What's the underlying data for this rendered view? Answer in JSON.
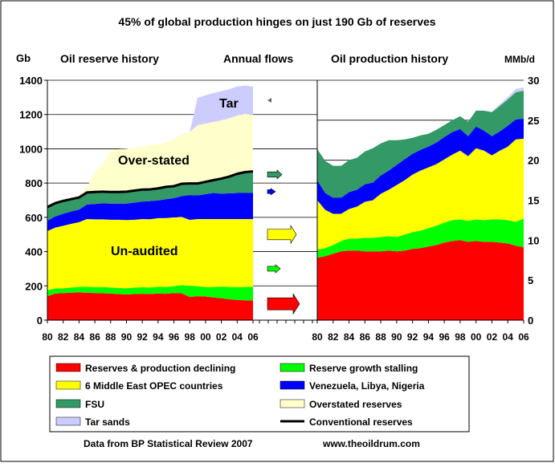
{
  "title": "45%  of global production hinges on just 190 Gb of reserves",
  "left_unit": "Gb",
  "right_unit": "MMb/d",
  "panel_titles": {
    "reserves": "Oil reserve history",
    "flows": "Annual flows",
    "production": "Oil production history"
  },
  "annotations": {
    "tar": "Tar",
    "overstated": "Over-stated",
    "unaudited": "Un-audited"
  },
  "footer": {
    "source": "Data from BP Statistical Review 2007",
    "url": "www.theoildrum.com"
  },
  "colors": {
    "red": "#ff0000",
    "green": "#00ff00",
    "yellow": "#ffff00",
    "blue": "#0000ff",
    "fsu": "#339966",
    "overstated": "#ffffcc",
    "tar": "#ccccff",
    "conventional": "#000000"
  },
  "chart_data": [
    {
      "type": "area",
      "stacked": true,
      "ylim": [
        0,
        1400
      ],
      "yticks": [
        0,
        200,
        400,
        600,
        800,
        1000,
        1200,
        1400
      ],
      "xtick_labels": [
        "80",
        "82",
        "84",
        "86",
        "88",
        "90",
        "92",
        "94",
        "96",
        "98",
        "00",
        "02",
        "04",
        "06"
      ],
      "x": [
        1980,
        1981,
        1982,
        1983,
        1984,
        1985,
        1986,
        1987,
        1988,
        1989,
        1990,
        1991,
        1992,
        1993,
        1994,
        1995,
        1996,
        1997,
        1998,
        1999,
        2000,
        2001,
        2002,
        2003,
        2004,
        2005,
        2006
      ],
      "grid": "horizontal",
      "series": [
        {
          "name": "Reserves & production declining",
          "color_key": "red",
          "values": [
            140,
            155,
            158,
            160,
            162,
            160,
            158,
            157,
            155,
            152,
            150,
            152,
            154,
            153,
            155,
            154,
            158,
            156,
            135,
            140,
            138,
            132,
            128,
            122,
            118,
            116,
            115
          ]
        },
        {
          "name": "Reserve growth stalling",
          "color_key": "green",
          "values": [
            35,
            30,
            28,
            30,
            32,
            35,
            35,
            36,
            36,
            36,
            36,
            38,
            38,
            38,
            40,
            40,
            40,
            48,
            65,
            58,
            55,
            62,
            68,
            72,
            75,
            78,
            80
          ]
        },
        {
          "name": "6 Middle East OPEC countries",
          "color_key": "yellow",
          "values": [
            345,
            355,
            365,
            372,
            378,
            395,
            395,
            395,
            395,
            398,
            398,
            396,
            398,
            398,
            400,
            402,
            402,
            398,
            385,
            392,
            397,
            396,
            394,
            396,
            397,
            396,
            395
          ]
        },
        {
          "name": "Venezuela, Libya, Nigeria",
          "color_key": "blue",
          "values": [
            60,
            65,
            70,
            72,
            73,
            85,
            90,
            94,
            94,
            94,
            96,
            100,
            102,
            106,
            104,
            110,
            112,
            122,
            145,
            138,
            145,
            152,
            148,
            150,
            152,
            152,
            152
          ]
        },
        {
          "name": "FSU",
          "color_key": "fsu",
          "values": [
            80,
            78,
            75,
            72,
            71,
            70,
            70,
            68,
            68,
            68,
            70,
            70,
            70,
            68,
            70,
            72,
            70,
            72,
            68,
            70,
            72,
            75,
            88,
            98,
            112,
            122,
            126
          ]
        },
        {
          "name": "Overstated reserves",
          "color_key": "overstated",
          "values": [
            0,
            0,
            0,
            0,
            15,
            30,
            120,
            160,
            240,
            250,
            250,
            250,
            250,
            260,
            255,
            260,
            275,
            290,
            300,
            340,
            340,
            340,
            340,
            340,
            340,
            340,
            330
          ]
        },
        {
          "name": "Tar sands",
          "color_key": "tar",
          "values": [
            0,
            0,
            0,
            0,
            0,
            0,
            0,
            0,
            0,
            0,
            0,
            0,
            0,
            0,
            0,
            0,
            0,
            0,
            0,
            160,
            165,
            168,
            170,
            170,
            170,
            165,
            165
          ]
        }
      ],
      "conventional_reserves_series": "Conventional reserves"
    },
    {
      "type": "area",
      "stacked": true,
      "ylim": [
        0,
        30
      ],
      "yticks": [
        0,
        5,
        10,
        15,
        20,
        25,
        30
      ],
      "xtick_labels": [
        "80",
        "82",
        "84",
        "86",
        "88",
        "90",
        "92",
        "94",
        "96",
        "98",
        "00",
        "02",
        "04",
        "06"
      ],
      "x": [
        1980,
        1981,
        1982,
        1983,
        1984,
        1985,
        1986,
        1987,
        1988,
        1989,
        1990,
        1991,
        1992,
        1993,
        1994,
        1995,
        1996,
        1997,
        1998,
        1999,
        2000,
        2001,
        2002,
        2003,
        2004,
        2005,
        2006
      ],
      "series": [
        {
          "name": "Reserves & production declining",
          "color_key": "red",
          "values": [
            7.8,
            8.0,
            8.3,
            8.6,
            8.7,
            8.7,
            8.6,
            8.6,
            8.6,
            8.7,
            8.6,
            8.7,
            8.9,
            9.0,
            9.2,
            9.4,
            9.7,
            9.9,
            10.0,
            9.8,
            9.9,
            9.8,
            9.8,
            9.7,
            9.6,
            9.3,
            9.1
          ]
        },
        {
          "name": "Reserve growth stalling",
          "color_key": "green",
          "values": [
            1.0,
            1.0,
            1.1,
            1.3,
            1.5,
            1.5,
            1.7,
            1.7,
            1.8,
            1.8,
            1.8,
            2.0,
            2.1,
            2.2,
            2.3,
            2.4,
            2.5,
            2.6,
            2.6,
            2.6,
            2.7,
            2.7,
            2.8,
            2.9,
            2.9,
            3.0,
            3.6
          ]
        },
        {
          "name": "6 Middle East OPEC countries",
          "color_key": "yellow",
          "values": [
            6.2,
            4.8,
            3.9,
            3.4,
            3.7,
            4.0,
            4.5,
            4.7,
            5.4,
            5.8,
            6.5,
            6.8,
            7.2,
            7.5,
            7.6,
            7.7,
            7.9,
            8.2,
            8.6,
            8.1,
            8.9,
            8.7,
            8.0,
            8.6,
            9.2,
            10.3,
            10.0
          ]
        },
        {
          "name": "Venezuela, Libya, Nigeria",
          "color_key": "blue",
          "values": [
            2.5,
            2.1,
            2.0,
            2.0,
            2.1,
            2.1,
            2.2,
            2.2,
            2.3,
            2.4,
            2.5,
            2.6,
            2.6,
            2.6,
            2.6,
            2.7,
            2.8,
            2.8,
            2.7,
            2.5,
            2.7,
            2.5,
            2.4,
            2.4,
            2.6,
            2.5,
            2.5
          ]
        },
        {
          "name": "FSU",
          "color_key": "fsu",
          "values": [
            3.9,
            4.0,
            4.0,
            4.0,
            4.0,
            4.0,
            4.1,
            4.3,
            4.0,
            3.8,
            3.1,
            2.5,
            2.0,
            1.8,
            1.6,
            1.6,
            1.5,
            1.5,
            1.6,
            1.8,
            2.0,
            2.5,
            3.0,
            3.2,
            3.3,
            3.4,
            3.5
          ]
        },
        {
          "name": "Tar sands",
          "color_key": "tar",
          "values": [
            0,
            0,
            0,
            0,
            0,
            0,
            0,
            0,
            0,
            0,
            0,
            0,
            0,
            0,
            0,
            0,
            0,
            0,
            0,
            0,
            0,
            0,
            0.1,
            0.2,
            0.3,
            0.4,
            0.4
          ]
        }
      ]
    },
    {
      "type": "flow-arrows",
      "arrows": [
        {
          "series": "FSU",
          "color_key": "fsu",
          "level": 850,
          "length": 18
        },
        {
          "series": "Venezuela, Libya, Nigeria",
          "color_key": "blue",
          "level": 750,
          "length": 10
        },
        {
          "series": "6 Middle East OPEC countries",
          "color_key": "yellow",
          "level": 500,
          "length": 36
        },
        {
          "series": "Reserve growth stalling",
          "color_key": "green",
          "level": 300,
          "length": 16
        },
        {
          "series": "Reserves & production declining",
          "color_key": "red",
          "level": 95,
          "length": 40
        }
      ]
    }
  ],
  "legend": [
    {
      "label": "Reserves & production declining",
      "color_key": "red",
      "swatch": "box"
    },
    {
      "label": "Reserve growth stalling",
      "color_key": "green",
      "swatch": "box"
    },
    {
      "label": "6 Middle East OPEC countries",
      "color_key": "yellow",
      "swatch": "box"
    },
    {
      "label": "Venezuela, Libya, Nigeria",
      "color_key": "blue",
      "swatch": "box"
    },
    {
      "label": "FSU",
      "color_key": "fsu",
      "swatch": "box"
    },
    {
      "label": "Overstated reserves",
      "color_key": "overstated",
      "swatch": "box"
    },
    {
      "label": "Tar sands",
      "color_key": "tar",
      "swatch": "box"
    },
    {
      "label": "Conventional reserves",
      "color_key": "conventional",
      "swatch": "line"
    }
  ]
}
